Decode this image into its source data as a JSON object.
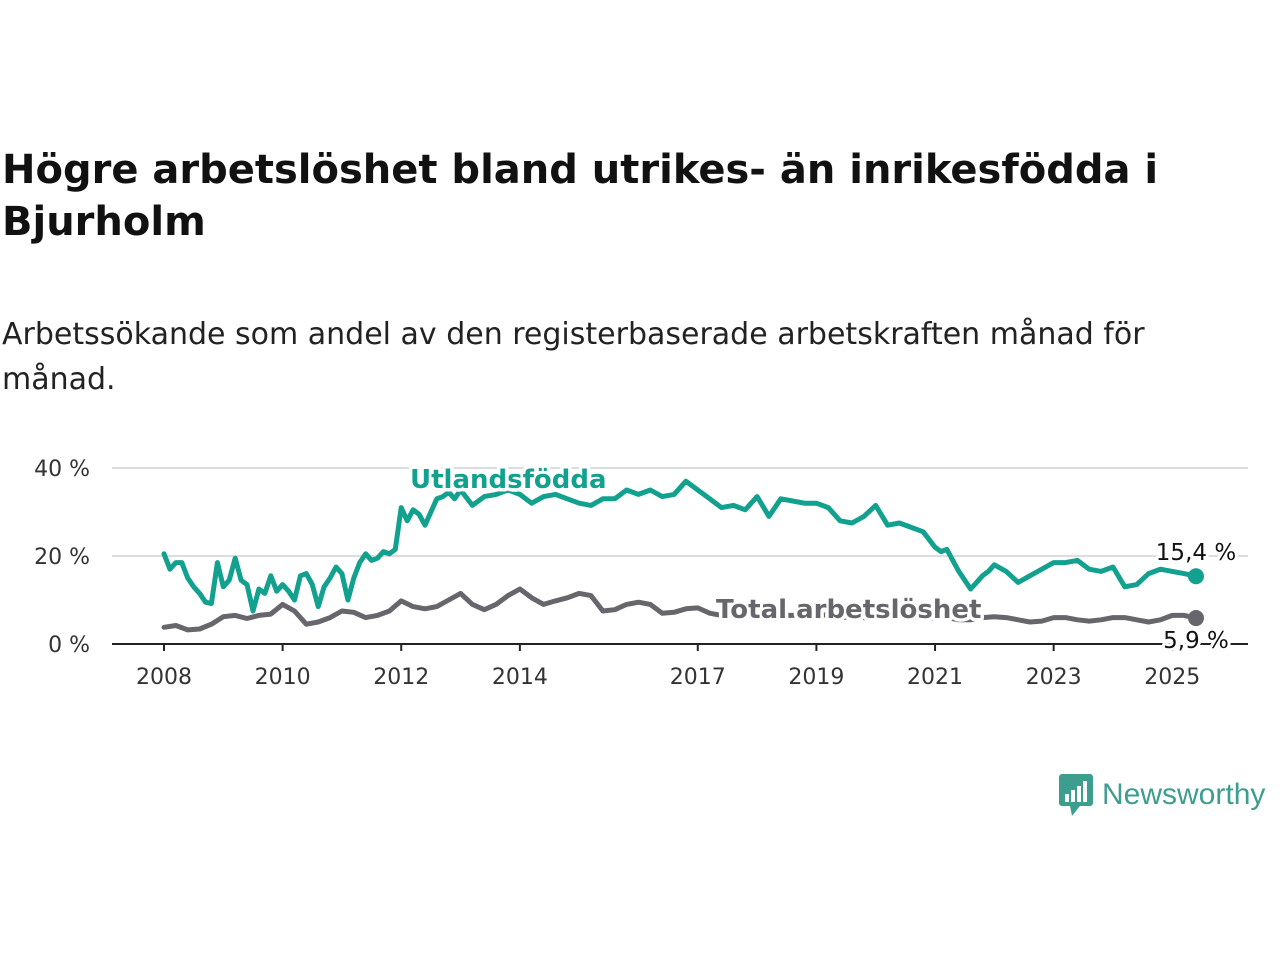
{
  "title": "Högre arbetslöshet bland utrikes- än inrikesfödda i Bjurholm",
  "subtitle": "Arbetssökande som andel av den registerbaserade arbetskraften månad för månad.",
  "brand": {
    "name": "Newsworthy",
    "color": "#3d9d8f"
  },
  "chart_data": {
    "type": "line",
    "title": "Högre arbetslöshet bland utrikes- än inrikesfödda i Bjurholm",
    "xlabel": "",
    "ylabel": "",
    "x_range": [
      2008.0,
      2025.4
    ],
    "ylim": [
      0,
      40
    ],
    "y_ticks": [
      "0 %",
      "20 %",
      "40 %"
    ],
    "y_tick_values": [
      0,
      20,
      40
    ],
    "x_ticks": [
      "2008",
      "2010",
      "2012",
      "2014",
      "2017",
      "2019",
      "2021",
      "2023",
      "2025"
    ],
    "x_tick_values": [
      2008,
      2010,
      2012,
      2014,
      2017,
      2019,
      2021,
      2023,
      2025
    ],
    "grid": true,
    "legend": "inline",
    "series": [
      {
        "name": "Utlandsfödda",
        "color": "#12a08f",
        "end_label": "15,4 %",
        "x": [
          2008.0,
          2008.1,
          2008.2,
          2008.3,
          2008.4,
          2008.5,
          2008.6,
          2008.7,
          2008.8,
          2008.9,
          2009.0,
          2009.1,
          2009.2,
          2009.3,
          2009.4,
          2009.5,
          2009.6,
          2009.7,
          2009.8,
          2009.9,
          2010.0,
          2010.1,
          2010.2,
          2010.3,
          2010.4,
          2010.5,
          2010.6,
          2010.7,
          2010.8,
          2010.9,
          2011.0,
          2011.1,
          2011.2,
          2011.3,
          2011.4,
          2011.5,
          2011.6,
          2011.7,
          2011.8,
          2011.9,
          2012.0,
          2012.1,
          2012.2,
          2012.3,
          2012.4,
          2012.5,
          2012.6,
          2012.7,
          2012.8,
          2012.9,
          2013.0,
          2013.2,
          2013.4,
          2013.6,
          2013.8,
          2014.0,
          2014.2,
          2014.4,
          2014.6,
          2014.8,
          2015.0,
          2015.2,
          2015.4,
          2015.6,
          2015.8,
          2016.0,
          2016.2,
          2016.4,
          2016.6,
          2016.8,
          2017.0,
          2017.2,
          2017.4,
          2017.6,
          2017.8,
          2018.0,
          2018.2,
          2018.4,
          2018.6,
          2018.8,
          2019.0,
          2019.2,
          2019.4,
          2019.6,
          2019.8,
          2020.0,
          2020.2,
          2020.4,
          2020.6,
          2020.8,
          2021.0,
          2021.1,
          2021.2,
          2021.3,
          2021.4,
          2021.5,
          2021.6,
          2021.7,
          2021.8,
          2021.9,
          2022.0,
          2022.2,
          2022.4,
          2022.6,
          2022.8,
          2023.0,
          2023.2,
          2023.4,
          2023.6,
          2023.8,
          2024.0,
          2024.2,
          2024.4,
          2024.6,
          2024.8,
          2025.0,
          2025.2,
          2025.4
        ],
        "values": [
          20.5,
          17.0,
          18.5,
          18.5,
          15.0,
          13.0,
          11.5,
          9.5,
          9.2,
          18.5,
          13.0,
          14.5,
          19.5,
          14.5,
          13.5,
          7.5,
          12.5,
          11.5,
          15.5,
          12.0,
          13.5,
          12.0,
          10.0,
          15.5,
          16.0,
          13.5,
          8.5,
          13.0,
          15.0,
          17.5,
          16.0,
          10.0,
          15.0,
          18.5,
          20.5,
          19.0,
          19.5,
          21.0,
          20.5,
          21.5,
          31.0,
          28.0,
          30.5,
          29.5,
          27.0,
          30.0,
          33.0,
          33.5,
          34.5,
          33.0,
          35.0,
          31.5,
          33.5,
          34.0,
          35.0,
          34.0,
          32.0,
          33.5,
          34.0,
          33.0,
          32.0,
          31.5,
          33.0,
          33.0,
          35.0,
          34.0,
          35.0,
          33.5,
          34.0,
          37.0,
          35.0,
          33.0,
          31.0,
          31.5,
          30.5,
          33.5,
          29.0,
          33.0,
          32.5,
          32.0,
          32.0,
          31.0,
          28.0,
          27.5,
          29.0,
          31.5,
          27.0,
          27.5,
          26.5,
          25.5,
          22.0,
          21.0,
          21.5,
          19.0,
          16.5,
          14.5,
          12.5,
          14.0,
          15.5,
          16.5,
          18.0,
          16.5,
          14.0,
          15.5,
          17.0,
          18.5,
          18.5,
          19.0,
          17.0,
          16.5,
          17.5,
          13.0,
          13.5,
          16.0,
          17.0,
          16.5,
          16.0,
          15.4
        ]
      },
      {
        "name": "Total arbetslöshet",
        "color": "#66666c",
        "end_label": "5,9 %",
        "x": [
          2008.0,
          2008.2,
          2008.4,
          2008.6,
          2008.8,
          2009.0,
          2009.2,
          2009.4,
          2009.6,
          2009.8,
          2010.0,
          2010.2,
          2010.4,
          2010.6,
          2010.8,
          2011.0,
          2011.2,
          2011.4,
          2011.6,
          2011.8,
          2012.0,
          2012.2,
          2012.4,
          2012.6,
          2012.8,
          2013.0,
          2013.2,
          2013.4,
          2013.6,
          2013.8,
          2014.0,
          2014.2,
          2014.4,
          2014.6,
          2014.8,
          2015.0,
          2015.2,
          2015.4,
          2015.6,
          2015.8,
          2016.0,
          2016.2,
          2016.4,
          2016.6,
          2016.8,
          2017.0,
          2017.2,
          2017.4,
          2017.6,
          2017.8,
          2018.0,
          2018.2,
          2018.4,
          2018.6,
          2018.8,
          2019.0,
          2019.2,
          2019.4,
          2019.6,
          2019.8,
          2020.0,
          2020.2,
          2020.4,
          2020.6,
          2020.8,
          2021.0,
          2021.2,
          2021.4,
          2021.6,
          2021.8,
          2022.0,
          2022.2,
          2022.4,
          2022.6,
          2022.8,
          2023.0,
          2023.2,
          2023.4,
          2023.6,
          2023.8,
          2024.0,
          2024.2,
          2024.4,
          2024.6,
          2024.8,
          2025.0,
          2025.2,
          2025.4
        ],
        "values": [
          3.8,
          4.2,
          3.2,
          3.4,
          4.5,
          6.2,
          6.5,
          5.8,
          6.5,
          6.8,
          9.0,
          7.5,
          4.5,
          5.0,
          6.0,
          7.5,
          7.2,
          6.0,
          6.5,
          7.5,
          9.8,
          8.5,
          8.0,
          8.5,
          10.0,
          11.5,
          9.0,
          7.8,
          9.0,
          11.0,
          12.5,
          10.5,
          9.0,
          9.8,
          10.5,
          11.5,
          11.0,
          7.5,
          7.8,
          9.0,
          9.5,
          9.0,
          7.0,
          7.2,
          8.0,
          8.2,
          7.0,
          6.5,
          7.0,
          7.5,
          7.0,
          6.8,
          6.5,
          6.5,
          7.0,
          6.8,
          6.5,
          6.0,
          6.2,
          6.0,
          5.8,
          6.0,
          6.5,
          6.0,
          6.2,
          5.8,
          6.0,
          5.5,
          5.5,
          6.0,
          6.2,
          6.0,
          5.5,
          5.0,
          5.2,
          6.0,
          6.0,
          5.5,
          5.2,
          5.5,
          6.0,
          6.0,
          5.5,
          5.0,
          5.5,
          6.5,
          6.5,
          5.9
        ]
      }
    ]
  }
}
